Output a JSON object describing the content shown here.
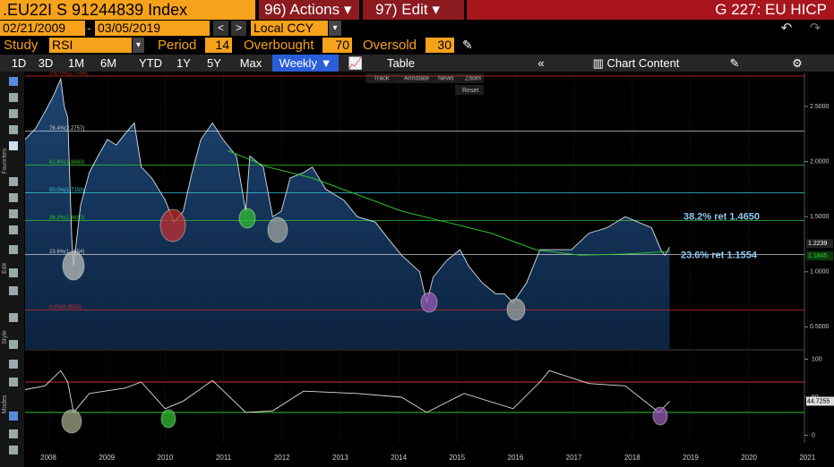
{
  "header": {
    "security": ".EU22I S 91244839 Index",
    "actions": "96) Actions",
    "edit": "97) Edit",
    "function": "G 227: EU HICP"
  },
  "controls": {
    "start_date": "02/21/2009",
    "end_date": "03/05/2019",
    "currency": "Local CCY",
    "study_label": "Study",
    "study": "RSI",
    "period_label": "Period",
    "period": 14,
    "overbought_label": "Overbought",
    "overbought": 70,
    "oversold_label": "Oversold",
    "oversold": 30
  },
  "toolbar": {
    "ranges": [
      "1D",
      "3D",
      "1M",
      "6M",
      "YTD",
      "1Y",
      "5Y",
      "Max"
    ],
    "frequency": "Weekly",
    "table": "Table",
    "chart_content": "Chart Content"
  },
  "chart_tools": [
    "Track",
    "Annotate",
    "News",
    "Zoom",
    "Reset"
  ],
  "side_labels": [
    "Favorites",
    "Edit",
    "Style",
    "Modes"
  ],
  "chart_data": [
    {
      "type": "line",
      "xlim": [
        2008.1,
        2021.45
      ],
      "xticks": [
        {
          "value": 2008.5,
          "label": "2008"
        },
        {
          "value": 2009.5,
          "label": "2009"
        },
        {
          "value": 2010.5,
          "label": "2010"
        },
        {
          "value": 2011.5,
          "label": "2011"
        },
        {
          "value": 2012.5,
          "label": "2012"
        },
        {
          "value": 2013.5,
          "label": "2013"
        },
        {
          "value": 2014.5,
          "label": "2014"
        },
        {
          "value": 2015.5,
          "label": "2015"
        },
        {
          "value": 2016.5,
          "label": "2016"
        },
        {
          "value": 2017.5,
          "label": "2017"
        },
        {
          "value": 2018.5,
          "label": "2018"
        },
        {
          "value": 2019.5,
          "label": "2019"
        },
        {
          "value": 2020.5,
          "label": "2020"
        },
        {
          "value": 2021.5,
          "label": "2021"
        }
      ],
      "ylim": [
        0.3,
        2.8
      ],
      "yticks": [
        {
          "value": 0.5,
          "label": "0.5000"
        },
        {
          "value": 1,
          "label": "1.0000"
        },
        {
          "value": 1.5,
          "label": "1.5000"
        },
        {
          "value": 2,
          "label": "2.0000"
        },
        {
          "value": 2.5,
          "label": "2.5000"
        }
      ],
      "fib_levels": [
        {
          "label": "100.0%(2.7756)",
          "value": 2.7756,
          "color": "#d03030"
        },
        {
          "label": "76.4%(2.2757)",
          "value": 2.2757,
          "color": "#cccccc"
        },
        {
          "label": "61.8%(1.9683)",
          "value": 1.9683,
          "color": "#30c030"
        },
        {
          "label": "50.0%(1.7153)",
          "value": 1.7153,
          "color": "#40c8e0"
        },
        {
          "label": "38.2%(1.4650)",
          "value": 1.465,
          "color": "#30c030"
        },
        {
          "label": "23.6%(1.1554)",
          "value": 1.1554,
          "color": "#cccccc"
        },
        {
          "label": "0.0%(0.6550)",
          "value": 0.655,
          "color": "#d03030"
        }
      ],
      "annotations": [
        "38.2% ret 1.4650",
        "23.6% ret 1.1554"
      ],
      "series": [
        {
          "color": "#d8e0ec",
          "last_label": "1.2239",
          "x": [
            2008.1,
            2008.28,
            2008.44,
            2008.59,
            2008.71,
            2008.77,
            2008.83,
            2008.9,
            2008.93,
            2009.05,
            2009.2,
            2009.35,
            2009.51,
            2009.66,
            2009.81,
            2009.97,
            2010.09,
            2010.27,
            2010.5,
            2010.65,
            2010.81,
            2010.96,
            2011.11,
            2011.31,
            2011.49,
            2011.72,
            2011.88,
            2011.95,
            2012.18,
            2012.34,
            2012.49,
            2012.64,
            2012.87,
            2013.02,
            2013.25,
            2013.56,
            2013.79,
            2014.1,
            2014.32,
            2014.55,
            2014.86,
            2014.98,
            2015.09,
            2015.32,
            2015.55,
            2015.7,
            2015.93,
            2016.16,
            2016.31,
            2016.46,
            2016.69,
            2016.92,
            2017.15,
            2017.46,
            2017.76,
            2018.07,
            2018.38,
            2018.6,
            2018.83,
            2018.99,
            2019.06,
            2019.14
          ],
          "values": [
            2.2,
            2.3,
            2.45,
            2.6,
            2.75,
            2.5,
            2.4,
            1.3,
            1.05,
            1.6,
            1.9,
            2.05,
            2.2,
            2.15,
            2.25,
            2.35,
            1.95,
            1.85,
            1.65,
            1.45,
            1.55,
            1.9,
            2.2,
            2.35,
            2.2,
            2.05,
            1.55,
            2.05,
            1.95,
            1.5,
            1.55,
            1.85,
            1.9,
            1.95,
            1.75,
            1.65,
            1.5,
            1.45,
            1.3,
            1.15,
            1.0,
            0.72,
            0.95,
            1.1,
            1.2,
            1.05,
            0.9,
            0.8,
            0.8,
            0.72,
            0.9,
            1.2,
            1.2,
            1.2,
            1.35,
            1.4,
            1.5,
            1.45,
            1.4,
            1.2,
            1.15,
            1.2239
          ]
        },
        {
          "color": "#30c030",
          "last_label": "1.1845",
          "x": [
            2011.57,
            2012.26,
            2013.02,
            2013.79,
            2014.55,
            2015.32,
            2016.08,
            2016.85,
            2017.61,
            2018.38,
            2019.14
          ],
          "values": [
            2.1,
            1.95,
            1.85,
            1.7,
            1.55,
            1.45,
            1.35,
            1.2,
            1.15,
            1.16,
            1.1845
          ]
        }
      ]
    },
    {
      "type": "line",
      "ylim": [
        -10,
        110
      ],
      "yticks": [
        0,
        50,
        100
      ],
      "series": [
        {
          "color": "#dddddd",
          "last_label": "44.7255",
          "x": [
            2008.1,
            2008.44,
            2008.71,
            2008.83,
            2008.93,
            2009.2,
            2009.81,
            2010.09,
            2010.5,
            2010.81,
            2011.31,
            2011.88,
            2012.34,
            2012.87,
            2013.79,
            2014.55,
            2014.98,
            2015.62,
            2016.46,
            2016.92,
            2017.08,
            2017.76,
            2018.38,
            2018.96,
            2019.14
          ],
          "values": [
            60,
            65,
            85,
            70,
            30,
            55,
            62,
            70,
            35,
            45,
            72,
            30,
            32,
            58,
            55,
            50,
            30,
            55,
            35,
            70,
            85,
            68,
            65,
            30,
            44.7255
          ]
        }
      ]
    }
  ]
}
